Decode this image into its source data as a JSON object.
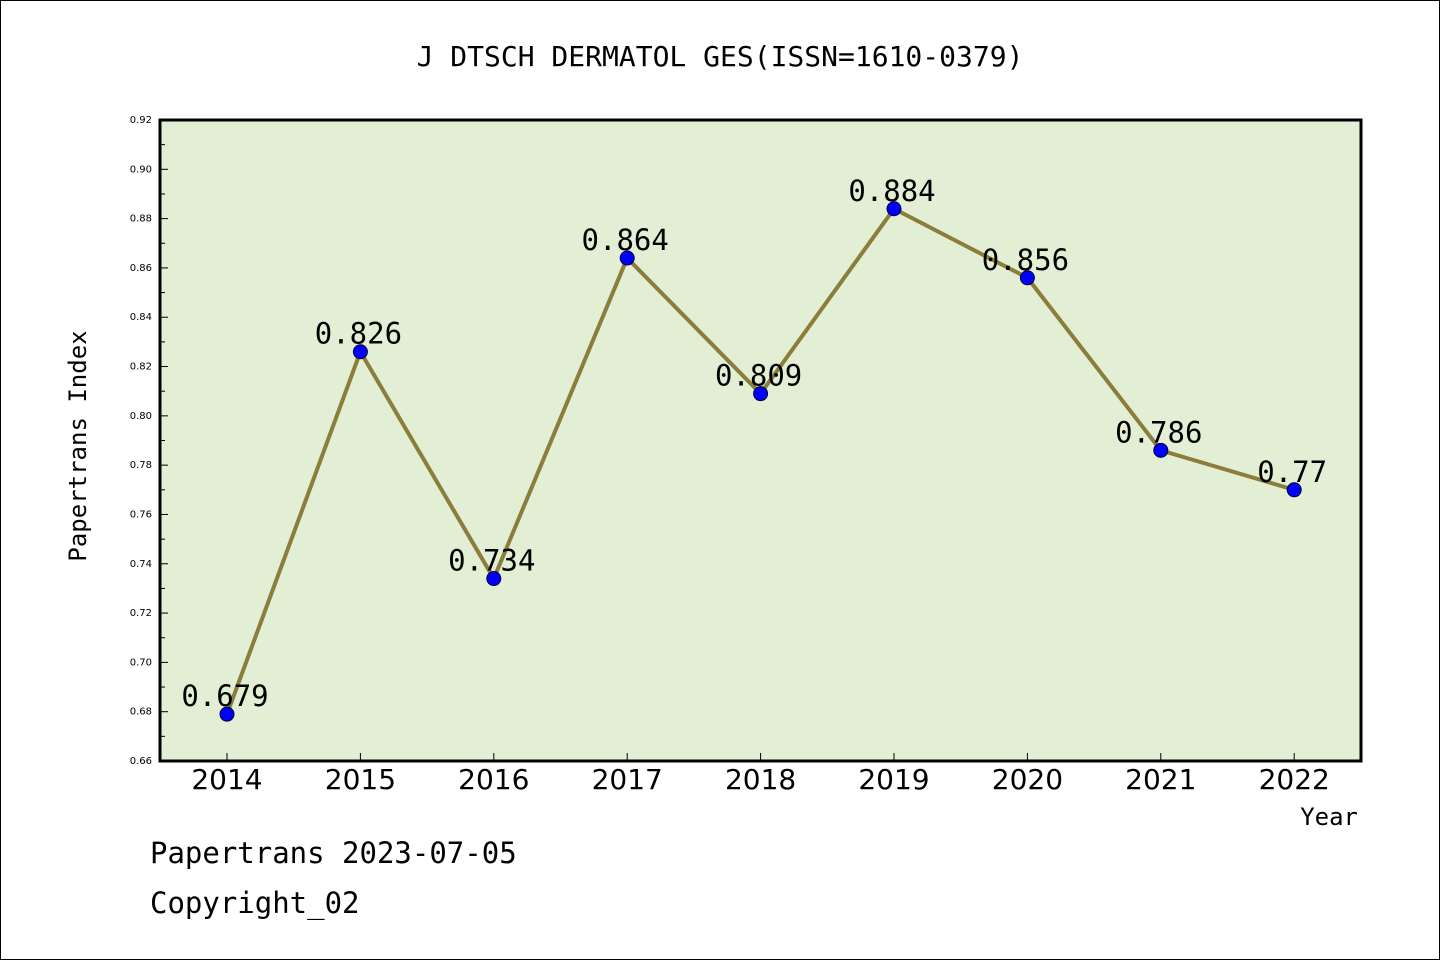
{
  "chart_data": {
    "type": "line",
    "title": "J DTSCH DERMATOL GES(ISSN=1610-0379)",
    "xlabel": "Year",
    "ylabel": "Papertrans Index",
    "categories": [
      "2014",
      "2015",
      "2016",
      "2017",
      "2018",
      "2019",
      "2020",
      "2021",
      "2022"
    ],
    "series": [
      {
        "values": [
          0.679,
          0.826,
          0.734,
          0.864,
          0.809,
          0.884,
          0.856,
          0.786,
          0.77
        ],
        "labels": [
          "0.679",
          "0.826",
          "0.734",
          "0.864",
          "0.809",
          "0.884",
          "0.856",
          "0.786",
          "0.77"
        ]
      }
    ],
    "ylim": [
      0.66,
      0.92
    ],
    "yticks": [
      "0.66",
      "0.68",
      "0.70",
      "0.72",
      "0.74",
      "0.76",
      "0.78",
      "0.80",
      "0.82",
      "0.84",
      "0.86",
      "0.88",
      "0.90",
      "0.92"
    ],
    "grid": false,
    "colors": {
      "plot_bg": "#e2efd5",
      "line": "#8b7d3a",
      "marker": "#0000ff"
    }
  },
  "footer": {
    "line1": "Papertrans 2023-07-05",
    "line2": "Copyright_02"
  }
}
